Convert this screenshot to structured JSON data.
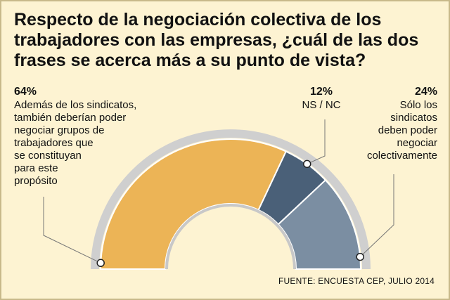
{
  "title": "Respecto de la negociación colectiva de los trabajadores con las empresas, ¿cuál de las dos frases se acerca más a su punto de vista?",
  "source": "FUENTE: ENCUESTA CEP, JULIO 2014",
  "chart_data": {
    "type": "pie",
    "title": "Respecto de la negociación colectiva de los trabajadores con las empresas, ¿cuál de las dos frases se acerca más a su punto de vista?",
    "style": "half-donut",
    "categories": [
      "Además de los sindicatos, también deberían poder negociar grupos de trabajadores que se constituyan para este propósito",
      "NS / NC",
      "Sólo los sindicatos deben poder negociar colectivamente"
    ],
    "values": [
      64,
      12,
      24
    ],
    "value_labels": [
      "64%",
      "12%",
      "24%"
    ],
    "colors": [
      "#ecb456",
      "#4a6078",
      "#7b8ea2"
    ],
    "label_lines": [
      [
        "Además de los sindicatos,",
        "también deberían poder",
        "negociar grupos de",
        "trabajadores que",
        "se constituyan",
        "para este",
        "propósito"
      ],
      [
        "NS / NC"
      ],
      [
        "Sólo los",
        "sindicatos",
        "deben poder",
        "negociar",
        "colectivamente"
      ]
    ]
  }
}
